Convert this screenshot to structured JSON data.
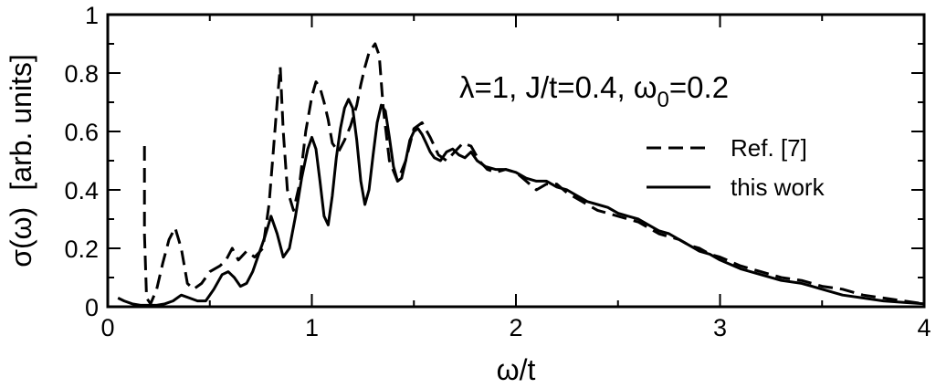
{
  "chart_data": {
    "type": "line",
    "xlabel": "ω/t",
    "ylabel_main": "σ(ω)",
    "ylabel_units": "[arb. units]",
    "xlim": [
      0,
      4
    ],
    "ylim": [
      0,
      1
    ],
    "xticks": [
      0,
      1,
      2,
      3,
      4
    ],
    "xtick_labels": [
      "0",
      "1",
      "2",
      "3",
      "4"
    ],
    "yticks": [
      0,
      0.2,
      0.4,
      0.6,
      0.8,
      1
    ],
    "ytick_labels": [
      "0",
      "0.2",
      "0.4",
      "0.6",
      "0.8",
      "1"
    ],
    "grid": false,
    "annotation": {
      "lambda_text": "λ=1, J/t=0.4, ω",
      "omega_sub": "0",
      "omega_val": "=0.2"
    },
    "legend_position": "right",
    "series": [
      {
        "name": "Ref. [7]",
        "style": "dashed",
        "color": "#000000",
        "x": [
          0.18,
          0.18,
          0.19,
          0.21,
          0.24,
          0.27,
          0.3,
          0.33,
          0.36,
          0.39,
          0.42,
          0.46,
          0.5,
          0.55,
          0.58,
          0.61,
          0.64,
          0.68,
          0.72,
          0.76,
          0.79,
          0.81,
          0.83,
          0.845,
          0.86,
          0.88,
          0.91,
          0.94,
          0.97,
          1.0,
          1.02,
          1.04,
          1.06,
          1.08,
          1.1,
          1.13,
          1.16,
          1.19,
          1.22,
          1.24,
          1.26,
          1.28,
          1.29,
          1.31,
          1.33,
          1.35,
          1.38,
          1.42,
          1.46,
          1.5,
          1.54,
          1.58,
          1.62,
          1.66,
          1.7,
          1.74,
          1.78,
          1.82,
          1.86,
          1.9,
          1.95,
          2.0,
          2.05,
          2.1,
          2.15,
          2.2,
          2.25,
          2.3,
          2.35,
          2.4,
          2.45,
          2.5,
          2.55,
          2.6,
          2.65,
          2.7,
          2.75,
          2.8,
          2.85,
          2.9,
          2.95,
          3.0,
          3.1,
          3.2,
          3.3,
          3.4,
          3.5,
          3.6,
          3.7,
          3.8,
          3.9,
          4.0
        ],
        "values": [
          0.55,
          0.25,
          0.03,
          0.01,
          0.06,
          0.15,
          0.23,
          0.27,
          0.2,
          0.08,
          0.06,
          0.08,
          0.12,
          0.14,
          0.16,
          0.2,
          0.16,
          0.19,
          0.17,
          0.2,
          0.35,
          0.52,
          0.7,
          0.82,
          0.6,
          0.4,
          0.33,
          0.42,
          0.6,
          0.72,
          0.77,
          0.75,
          0.7,
          0.64,
          0.56,
          0.53,
          0.57,
          0.62,
          0.69,
          0.76,
          0.82,
          0.87,
          0.88,
          0.9,
          0.86,
          0.68,
          0.5,
          0.43,
          0.5,
          0.61,
          0.63,
          0.58,
          0.52,
          0.5,
          0.53,
          0.56,
          0.55,
          0.5,
          0.47,
          0.46,
          0.47,
          0.46,
          0.43,
          0.4,
          0.42,
          0.42,
          0.39,
          0.37,
          0.35,
          0.33,
          0.32,
          0.31,
          0.3,
          0.29,
          0.27,
          0.25,
          0.24,
          0.23,
          0.21,
          0.2,
          0.18,
          0.17,
          0.14,
          0.12,
          0.1,
          0.09,
          0.07,
          0.06,
          0.04,
          0.03,
          0.02,
          0.01
        ]
      },
      {
        "name": "this work",
        "style": "solid",
        "color": "#000000",
        "x": [
          0.05,
          0.08,
          0.12,
          0.16,
          0.2,
          0.24,
          0.28,
          0.32,
          0.36,
          0.4,
          0.44,
          0.48,
          0.52,
          0.56,
          0.59,
          0.62,
          0.65,
          0.68,
          0.71,
          0.74,
          0.77,
          0.8,
          0.83,
          0.86,
          0.89,
          0.92,
          0.95,
          0.98,
          1.0,
          1.02,
          1.04,
          1.06,
          1.08,
          1.1,
          1.12,
          1.14,
          1.16,
          1.18,
          1.2,
          1.22,
          1.24,
          1.26,
          1.28,
          1.3,
          1.32,
          1.34,
          1.36,
          1.38,
          1.4,
          1.42,
          1.44,
          1.46,
          1.48,
          1.5,
          1.52,
          1.54,
          1.56,
          1.58,
          1.6,
          1.63,
          1.66,
          1.69,
          1.72,
          1.75,
          1.78,
          1.81,
          1.85,
          1.9,
          1.95,
          2.0,
          2.05,
          2.1,
          2.15,
          2.2,
          2.25,
          2.3,
          2.35,
          2.4,
          2.45,
          2.5,
          2.55,
          2.6,
          2.65,
          2.7,
          2.75,
          2.8,
          2.85,
          2.9,
          2.95,
          3.0,
          3.1,
          3.2,
          3.3,
          3.4,
          3.5,
          3.6,
          3.7,
          3.8,
          3.9,
          4.0
        ],
        "values": [
          0.03,
          0.02,
          0.01,
          0.005,
          0.005,
          0.005,
          0.01,
          0.02,
          0.04,
          0.03,
          0.02,
          0.02,
          0.06,
          0.11,
          0.12,
          0.1,
          0.07,
          0.08,
          0.12,
          0.18,
          0.24,
          0.31,
          0.25,
          0.17,
          0.2,
          0.31,
          0.44,
          0.54,
          0.58,
          0.54,
          0.43,
          0.31,
          0.28,
          0.38,
          0.51,
          0.61,
          0.68,
          0.71,
          0.68,
          0.57,
          0.43,
          0.35,
          0.4,
          0.52,
          0.63,
          0.69,
          0.67,
          0.58,
          0.48,
          0.43,
          0.44,
          0.5,
          0.57,
          0.6,
          0.61,
          0.59,
          0.56,
          0.53,
          0.51,
          0.5,
          0.53,
          0.54,
          0.52,
          0.51,
          0.53,
          0.5,
          0.48,
          0.47,
          0.47,
          0.46,
          0.44,
          0.43,
          0.43,
          0.41,
          0.4,
          0.38,
          0.36,
          0.35,
          0.34,
          0.32,
          0.31,
          0.3,
          0.28,
          0.26,
          0.25,
          0.23,
          0.21,
          0.19,
          0.18,
          0.16,
          0.13,
          0.11,
          0.09,
          0.08,
          0.06,
          0.04,
          0.03,
          0.02,
          0.015,
          0.01
        ]
      }
    ]
  }
}
